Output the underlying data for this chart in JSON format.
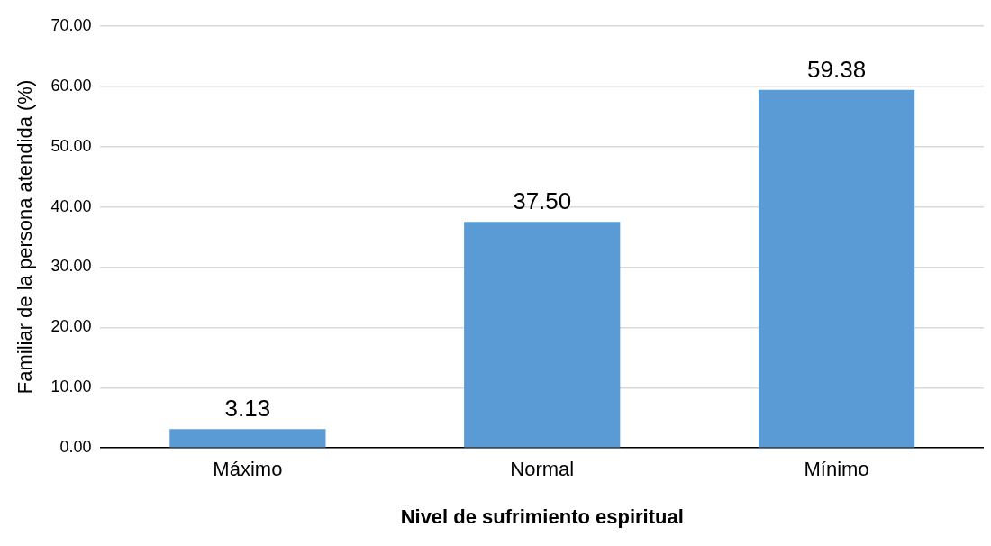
{
  "chart_data": {
    "type": "bar",
    "xlabel": "Nivel de sufrimiento espiritual",
    "ylabel": "Familiar de la persona atendida (%)",
    "categories": [
      "Máximo",
      "Normal",
      "Mínimo"
    ],
    "values": [
      3.13,
      37.5,
      59.38
    ],
    "color": "#5b9bd5",
    "value_labels": [
      "3.13",
      "37.50",
      "59.38"
    ],
    "ylim": [
      0,
      70
    ],
    "yticks": [
      {
        "value": 0,
        "label": "0.00"
      },
      {
        "value": 10,
        "label": "10.00"
      },
      {
        "value": 20,
        "label": "20.00"
      },
      {
        "value": 30,
        "label": "30.00"
      },
      {
        "value": 40,
        "label": "40.00"
      },
      {
        "value": 50,
        "label": "50.00"
      },
      {
        "value": 60,
        "label": "60.00"
      },
      {
        "value": 70,
        "label": "70.00"
      }
    ],
    "grid": "y",
    "legend": false
  }
}
